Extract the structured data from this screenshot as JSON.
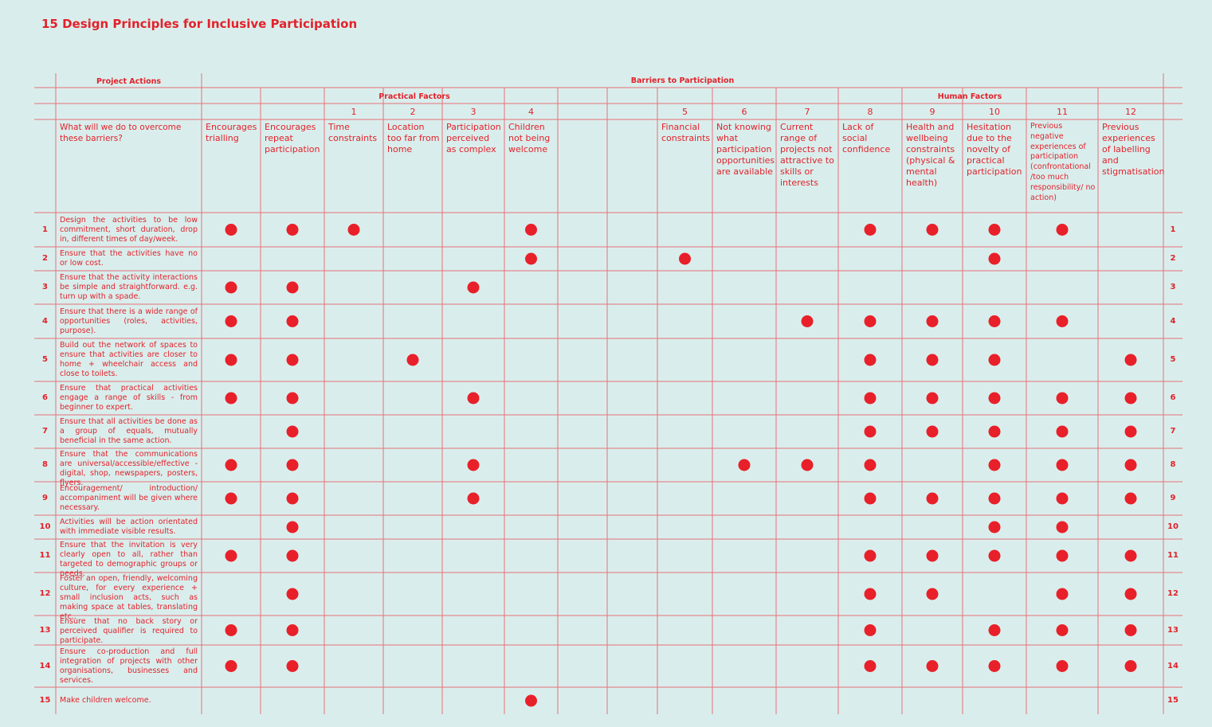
{
  "title": "15 Design Principles for Inclusive Participation",
  "table": {
    "project_actions": "Project Actions",
    "barriers": "Barriers to Participation",
    "practical": "Practical Factors",
    "human": "Human Factors",
    "question": "What will we do to overcome these barriers?",
    "columns": [
      {
        "header": "Encourages trialling"
      },
      {
        "header": "Encourages repeat participation"
      },
      {
        "num": "1",
        "header": "Time constraints"
      },
      {
        "num": "2",
        "header": "Location too far from home"
      },
      {
        "num": "3",
        "header": "Participation perceived as complex"
      },
      {
        "num": "4",
        "header": "Children not being welcome"
      },
      null,
      null,
      {
        "num": "5",
        "header": "Financial constraints"
      },
      {
        "num": "6",
        "header": "Not knowing what participation opportunities are available"
      },
      {
        "num": "7",
        "header": "Current range of projects not attractive to skills or interests"
      },
      {
        "num": "8",
        "header": "Lack of social confidence"
      },
      {
        "num": "9",
        "header": "Health and wellbeing constraints (physical & mental health)"
      },
      {
        "num": "10",
        "header": "Hesitation due to the novelty of practical participation"
      },
      {
        "num": "11",
        "header": "Previous negative experiences of participation (confrontational /too much responsibility/ no action)"
      },
      {
        "num": "12",
        "header": "Previous experiences of labelling and stigmatisation"
      }
    ],
    "rows": [
      {
        "num": "1",
        "action": "Design the activities to be low commitment, short duration, drop in, different times of day/week.",
        "dots": [
          0,
          1,
          2,
          5,
          11,
          12,
          13,
          14
        ]
      },
      {
        "num": "2",
        "action": "Ensure that the activities have no or low cost.",
        "dots": [
          5,
          8,
          13
        ]
      },
      {
        "num": "3",
        "action": "Ensure that the activity interactions be simple and straightforward. e.g. turn up with a spade.",
        "dots": [
          0,
          1,
          4
        ]
      },
      {
        "num": "4",
        "action": "Ensure that there is a wide range of opportunities (roles, activities, purpose).",
        "dots": [
          0,
          1,
          10,
          11,
          12,
          13,
          14
        ]
      },
      {
        "num": "5",
        "action": "Build out the network of spaces to ensure that activities are closer to home + wheelchair access and close to toilets.",
        "dots": [
          0,
          1,
          3,
          11,
          12,
          13,
          15
        ]
      },
      {
        "num": "6",
        "action": "Ensure that practical activities engage a range of skills - from beginner to expert.",
        "dots": [
          0,
          1,
          4,
          11,
          12,
          13,
          14,
          15
        ]
      },
      {
        "num": "7",
        "action": "Ensure that all activities be done as a group of equals, mutually beneficial in the same action.",
        "dots": [
          1,
          11,
          12,
          13,
          14,
          15
        ]
      },
      {
        "num": "8",
        "action": "Ensure that the communications are universal/accessible/effective - digital, shop, newspapers, posters, flyers.",
        "dots": [
          0,
          1,
          4,
          9,
          10,
          11,
          13,
          14,
          15
        ]
      },
      {
        "num": "9",
        "action": "Encouragement/ introduction/ accompaniment will be given where necessary.",
        "dots": [
          0,
          1,
          4,
          11,
          12,
          13,
          14,
          15
        ]
      },
      {
        "num": "10",
        "action": "Activities will be action orientated with immediate visible results.",
        "dots": [
          1,
          13,
          14
        ]
      },
      {
        "num": "11",
        "action": "Ensure that the invitation is very clearly open to all, rather than targeted to demographic groups or needs.",
        "dots": [
          0,
          1,
          11,
          12,
          13,
          14,
          15
        ]
      },
      {
        "num": "12",
        "action": "Foster an open, friendly, welcoming culture, for every experience + small inclusion acts, such as making space at tables, translating etc..",
        "dots": [
          1,
          11,
          12,
          14,
          15
        ]
      },
      {
        "num": "13",
        "action": "Ensure that no back story or perceived qualifier is required to participate.",
        "dots": [
          0,
          1,
          11,
          13,
          14,
          15
        ]
      },
      {
        "num": "14",
        "action": "Ensure co-production and full integration of projects with other organisations, businesses and services.",
        "dots": [
          0,
          1,
          11,
          12,
          13,
          14,
          15
        ]
      },
      {
        "num": "15",
        "action": "Make children welcome.",
        "dots": [
          5
        ]
      }
    ]
  }
}
